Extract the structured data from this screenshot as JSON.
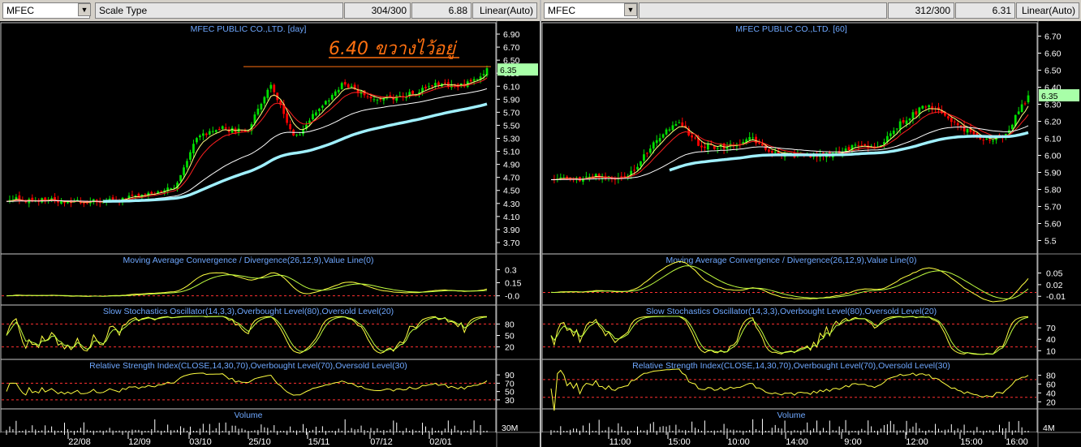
{
  "colors": {
    "background": "#000000",
    "panel_border": "#c8c8c8",
    "title_text": "#6fa8ff",
    "axis_text": "#ffffff",
    "up_candle": "#00e000",
    "down_candle": "#ff0000",
    "ema_short": "#ffff80",
    "ema_mid": "#ff2020",
    "ema_long": "#ffffff",
    "ema_longest": "#a0f0ff",
    "osc_line": "#ffff40",
    "osc_signal": "#c0ff40",
    "level_line": "#ff3030",
    "price_label_bg": "#a8ffa8",
    "annotation": "#ff7010"
  },
  "left": {
    "symbol": "MFEC",
    "scale_type_label": "Scale Type",
    "bars_count": "304/300",
    "last_value": "6.88",
    "scale_mode": "Linear(Auto)",
    "price_title": "MFEC PUBLIC CO.,LTD. [day]",
    "annotation": "6.40 ขวางไว้อยู่",
    "current_price_label": "6.35",
    "price_ticks": [
      "6.90",
      "6.70",
      "6.50",
      "6.30",
      "6.10",
      "5.90",
      "5.70",
      "5.50",
      "5.30",
      "5.10",
      "4.90",
      "4.70",
      "4.50",
      "4.30",
      "4.10",
      "3.90",
      "3.70"
    ],
    "macd_title": "Moving Average Convergence / Divergence(26,12,9),Value Line(0)",
    "macd_ticks": [
      "0.3",
      "0.15",
      "-0.0"
    ],
    "stoch_title": "Slow Stochastics Oscillator(14,3,3),Overbought Level(80),Oversold Level(20)",
    "stoch_ticks": [
      "80",
      "50",
      "20"
    ],
    "rsi_title": "Relative Strength Index(CLOSE,14,30,70),Overbought Level(70),Oversold Level(30)",
    "rsi_ticks": [
      "90",
      "70",
      "50",
      "30"
    ],
    "volume_title": "Volume",
    "volume_ticks": [
      "30M"
    ],
    "date_labels": [
      "22/08",
      "12/09",
      "03/10",
      "25/10",
      "15/11",
      "07/12",
      "02/01"
    ]
  },
  "right": {
    "symbol": "MFEC",
    "bars_count": "312/300",
    "last_value": "6.31",
    "scale_mode": "Linear(Auto)",
    "price_title": "MFEC PUBLIC CO.,LTD. [60]",
    "current_price_label": "6.35",
    "price_ticks": [
      "6.70",
      "6.60",
      "6.50",
      "6.40",
      "6.30",
      "6.20",
      "6.10",
      "6.00",
      "5.90",
      "5.80",
      "5.70",
      "5.60",
      "5.5"
    ],
    "macd_title": "Moving Average Convergence / Divergence(26,12,9),Value Line(0)",
    "macd_ticks": [
      "0.05",
      "0.02",
      "-0.01"
    ],
    "stoch_title": "Slow Stochastics Oscillator(14,3,3),Overbought Level(80),Oversold Level(20)",
    "stoch_ticks": [
      "70",
      "40",
      "10"
    ],
    "rsi_title": "Relative Strength Index(CLOSE,14,30,70),Overbought Level(70),Oversold Level(30)",
    "rsi_ticks": [
      "80",
      "60",
      "40",
      "20"
    ],
    "volume_title": "Volume",
    "volume_ticks": [
      "4M"
    ],
    "time_labels": [
      "11:00",
      "15:00",
      "10:00",
      "14:00",
      "9:00",
      "12:00",
      "15:00",
      "16:00"
    ]
  },
  "chart_data": [
    {
      "type": "candlestick",
      "title": "MFEC PUBLIC CO.,LTD. [day]",
      "x": [
        "22/08",
        "12/09",
        "03/10",
        "25/10",
        "15/11",
        "07/12",
        "02/01"
      ],
      "close_path": [
        4.37,
        4.35,
        4.34,
        4.33,
        4.33,
        4.38,
        4.43,
        4.55,
        5.35,
        5.45,
        5.4,
        6.12,
        5.3,
        5.75,
        6.15,
        5.95,
        5.9,
        6.0,
        6.15,
        6.1,
        6.35
      ],
      "resistance": 6.4,
      "ylim": [
        3.6,
        7.0
      ],
      "panels": [
        "price",
        "macd",
        "stochastic",
        "rsi",
        "volume"
      ]
    },
    {
      "type": "candlestick",
      "title": "MFEC PUBLIC CO.,LTD. [60]",
      "x": [
        "11:00",
        "15:00",
        "10:00",
        "14:00",
        "9:00",
        "12:00",
        "15:00",
        "16:00"
      ],
      "close_path": [
        5.87,
        5.86,
        5.88,
        5.86,
        6.05,
        6.2,
        6.05,
        6.05,
        6.1,
        6.0,
        6.0,
        6.0,
        6.05,
        6.05,
        6.2,
        6.3,
        6.2,
        6.1,
        6.1,
        6.35
      ],
      "ylim": [
        5.45,
        6.75
      ],
      "panels": [
        "price",
        "macd",
        "stochastic",
        "rsi",
        "volume"
      ]
    }
  ]
}
